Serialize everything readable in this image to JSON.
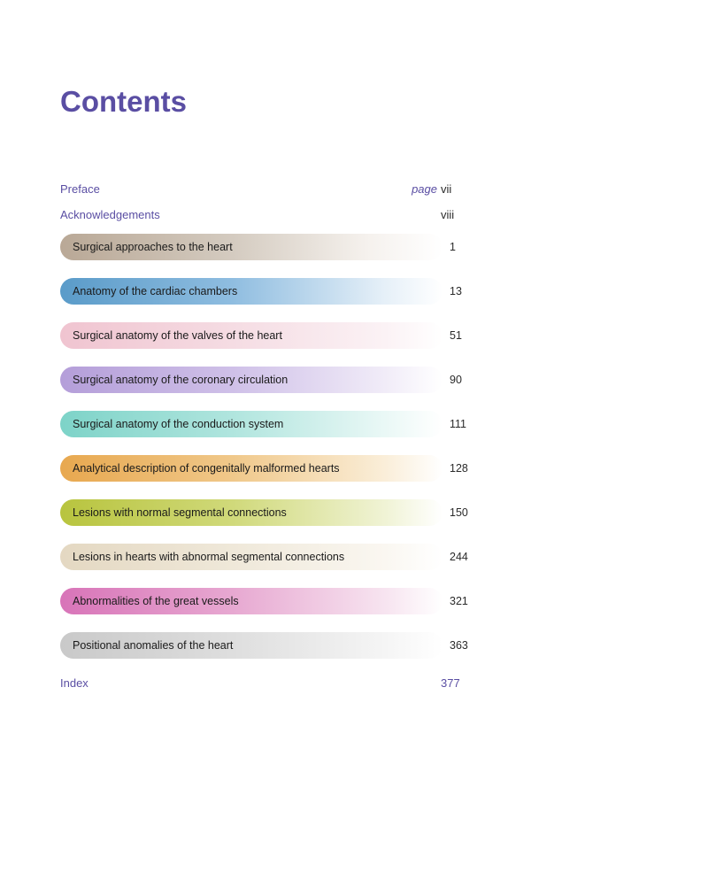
{
  "title": "Contents",
  "preface": {
    "label": "Preface",
    "page_word": "page",
    "page": "vii"
  },
  "ack": {
    "label": "Acknowledgements",
    "page": "viii"
  },
  "chapters": [
    {
      "title": "Surgical approaches to the heart",
      "page": "1",
      "grad": "g1"
    },
    {
      "title": "Anatomy of the cardiac chambers",
      "page": "13",
      "grad": "g2"
    },
    {
      "title": "Surgical anatomy of the valves of the heart",
      "page": "51",
      "grad": "g3"
    },
    {
      "title": "Surgical anatomy of the coronary circulation",
      "page": "90",
      "grad": "g4"
    },
    {
      "title": "Surgical anatomy of the conduction system",
      "page": "111",
      "grad": "g5"
    },
    {
      "title": "Analytical description of congenitally malformed hearts",
      "page": "128",
      "grad": "g6"
    },
    {
      "title": "Lesions with normal segmental connections",
      "page": "150",
      "grad": "g7"
    },
    {
      "title": "Lesions in hearts with abnormal segmental connections",
      "page": "244",
      "grad": "g8"
    },
    {
      "title": "Abnormalities of the great vessels",
      "page": "321",
      "grad": "g9"
    },
    {
      "title": "Positional anomalies of the heart",
      "page": "363",
      "grad": "g10"
    }
  ],
  "index": {
    "label": "Index",
    "page": "377"
  },
  "colors": {
    "title": "#5a4ea3",
    "link": "#5a4ea3",
    "text": "#2a2a2a",
    "background": "#ffffff"
  }
}
